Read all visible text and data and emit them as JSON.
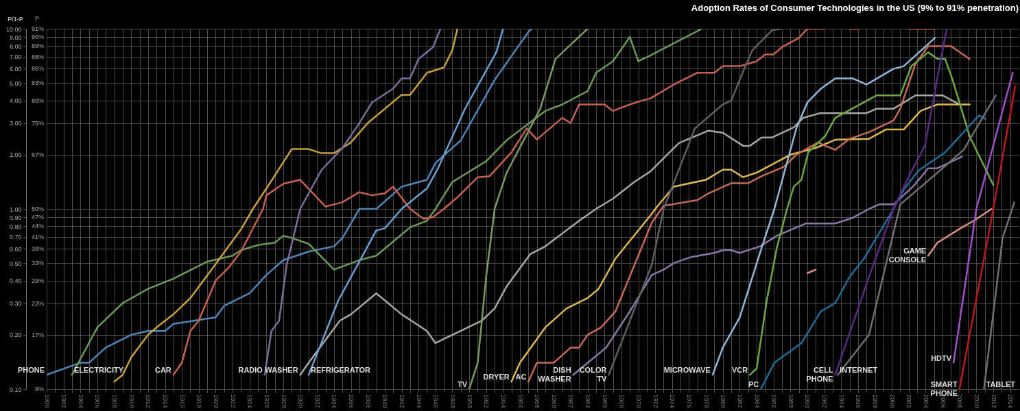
{
  "chart_data": {
    "type": "line",
    "title": "Adoption Rates of Consumer Technologies in the US (9% to 91% penetration)",
    "ylabel": "P/1-P",
    "annotations": [
      "P",
      "9%",
      "17%",
      "23%",
      "29%",
      "33%",
      "38%",
      "41%",
      "44%",
      "47%",
      "50%",
      "67%",
      "75%",
      "80%",
      "83%",
      "86%",
      "88%",
      "89%",
      "90%",
      "91%"
    ],
    "log": "y",
    "grid": true,
    "legend": false,
    "xlim": [
      1900,
      2015
    ],
    "ylim": [
      0.1,
      10
    ],
    "yticks": [
      {
        "value": 0.1,
        "label": "0.10"
      },
      {
        "value": 0.2,
        "label": "0.20"
      },
      {
        "value": 0.3,
        "label": "0.30"
      },
      {
        "value": 0.4,
        "label": "0.40"
      },
      {
        "value": 0.5,
        "label": "0.50"
      },
      {
        "value": 0.6,
        "label": "0.60"
      },
      {
        "value": 0.7,
        "label": "0.70"
      },
      {
        "value": 0.8,
        "label": "0.80"
      },
      {
        "value": 0.9,
        "label": "0.90"
      },
      {
        "value": 1,
        "label": "1.00"
      },
      {
        "value": 2,
        "label": "2.00"
      },
      {
        "value": 3,
        "label": "3.00"
      },
      {
        "value": 4,
        "label": "4.00"
      },
      {
        "value": 5,
        "label": "5.00"
      },
      {
        "value": 6,
        "label": "6.00"
      },
      {
        "value": 7,
        "label": "7.00"
      },
      {
        "value": 8,
        "label": "8.00"
      },
      {
        "value": 9,
        "label": "9.00"
      },
      {
        "value": 10,
        "label": "10.00"
      }
    ],
    "xticks": [
      1900,
      {
        "value": 1901,
        "label": null
      },
      1902,
      {
        "value": 1903,
        "label": null
      },
      1904,
      {
        "value": 1905,
        "label": null
      },
      1906,
      {
        "value": 1907,
        "label": null
      },
      1908,
      {
        "value": 1909,
        "label": null
      },
      1910,
      {
        "value": 1911,
        "label": null
      },
      1912,
      {
        "value": 1913,
        "label": null
      },
      1914,
      {
        "value": 1915,
        "label": null
      },
      1916,
      {
        "value": 1917,
        "label": null
      },
      1918,
      {
        "value": 1919,
        "label": null
      },
      1920,
      {
        "value": 1921,
        "label": null
      },
      1922,
      {
        "value": 1923,
        "label": null
      },
      1924,
      {
        "value": 1925,
        "label": null
      },
      1926,
      {
        "value": 1927,
        "label": null
      },
      1928,
      {
        "value": 1929,
        "label": null
      },
      1930,
      {
        "value": 1931,
        "label": null
      },
      1932,
      {
        "value": 1933,
        "label": null
      },
      1934,
      {
        "value": 1935,
        "label": null
      },
      1936,
      {
        "value": 1937,
        "label": null
      },
      1938,
      {
        "value": 1939,
        "label": null
      },
      1940,
      {
        "value": 1941,
        "label": null
      },
      1942,
      {
        "value": 1943,
        "label": null
      },
      1944,
      {
        "value": 1945,
        "label": null
      },
      1946,
      {
        "value": 1947,
        "label": null
      },
      1948,
      {
        "value": 1949,
        "label": null
      },
      1950,
      {
        "value": 1951,
        "label": null
      },
      1952,
      {
        "value": 1953,
        "label": null
      },
      1954,
      {
        "value": 1955,
        "label": null
      },
      1956,
      {
        "value": 1957,
        "label": null
      },
      1958,
      {
        "value": 1959,
        "label": null
      },
      1960,
      {
        "value": 1961,
        "label": null
      },
      1962,
      {
        "value": 1963,
        "label": null
      },
      1964,
      {
        "value": 1965,
        "label": null
      },
      1966,
      {
        "value": 1967,
        "label": null
      },
      1968,
      {
        "value": 1969,
        "label": null
      },
      1970,
      {
        "value": 1971,
        "label": null
      },
      1972,
      {
        "value": 1973,
        "label": null
      },
      1974,
      {
        "value": 1975,
        "label": null
      },
      1976,
      {
        "value": 1977,
        "label": null
      },
      1978,
      {
        "value": 1979,
        "label": null
      },
      1980,
      {
        "value": 1981,
        "label": null
      },
      1982,
      {
        "value": 1983,
        "label": null
      },
      1984,
      {
        "value": 1985,
        "label": null
      },
      1986,
      {
        "value": 1987,
        "label": null
      },
      1988,
      {
        "value": 1989,
        "label": null
      },
      1990,
      {
        "value": 1991,
        "label": null
      },
      1992,
      {
        "value": 1993,
        "label": null
      },
      1994,
      {
        "value": 1995,
        "label": null
      },
      1996,
      {
        "value": 1997,
        "label": null
      },
      1998,
      {
        "value": 1999,
        "label": null
      },
      2000,
      {
        "value": 2001,
        "label": null
      },
      2002,
      {
        "value": 2003,
        "label": null
      },
      2004,
      {
        "value": 2005,
        "label": null
      },
      2006,
      {
        "value": 2007,
        "label": null
      },
      2008,
      {
        "value": 2009,
        "label": null
      },
      2010,
      {
        "value": 2011,
        "label": null
      },
      2012,
      {
        "value": 2013,
        "label": null
      },
      2014
    ],
    "series": [
      {
        "name": "PHONE",
        "color": "#4f86b8",
        "x": [
          1900,
          1904,
          1905,
          1907,
          1910,
          1912,
          1914,
          1915,
          1920,
          1921,
          1924,
          1926,
          1928,
          1931,
          1934,
          1935,
          1937,
          1939,
          1942,
          1945,
          1946,
          1949,
          1953,
          1957,
          1957.4
        ],
        "values": [
          0.12,
          0.14,
          0.14,
          0.17,
          0.2,
          0.21,
          0.21,
          0.23,
          0.25,
          0.29,
          0.34,
          0.43,
          0.52,
          0.58,
          0.62,
          0.69,
          1.0,
          1.0,
          1.33,
          1.45,
          1.8,
          2.4,
          5.2,
          9.6,
          10
        ]
      },
      {
        "name": "ELECTRICITY",
        "color": "#6a9a58",
        "x": [
          1903,
          1906,
          1909,
          1912,
          1915,
          1919,
          1922,
          1923,
          1925,
          1927,
          1928,
          1929,
          1931,
          1934,
          1937,
          1939,
          1943,
          1945,
          1946,
          1948,
          1952,
          1954.4,
          1959,
          1961,
          1964,
          1965,
          1967,
          1969,
          1970,
          1971.4,
          1977.5
        ],
        "values": [
          0.12,
          0.22,
          0.3,
          0.36,
          0.41,
          0.51,
          0.55,
          0.59,
          0.63,
          0.65,
          0.71,
          0.69,
          0.64,
          0.46,
          0.52,
          0.55,
          0.79,
          0.86,
          1.0,
          1.41,
          1.84,
          2.4,
          3.5,
          3.8,
          4.5,
          5.7,
          6.6,
          9.0,
          6.6,
          7.1,
          10
        ]
      },
      {
        "color": "#c9a13b",
        "x": [
          1908,
          1909,
          1910,
          1912,
          1913,
          1915,
          1917,
          1919.5,
          1923,
          1924.4,
          1926.5,
          1929,
          1931,
          1932.5,
          1934,
          1936,
          1938,
          1942,
          1943,
          1945,
          1947,
          1948,
          1948.6
        ],
        "values": [
          0.11,
          0.12,
          0.15,
          0.2,
          0.22,
          0.26,
          0.32,
          0.46,
          0.77,
          1.0,
          1.41,
          2.15,
          2.15,
          2.04,
          2.04,
          2.34,
          3.0,
          4.3,
          4.3,
          5.7,
          6.1,
          7.6,
          10
        ]
      },
      {
        "name": "CAR",
        "color": "#c8614f",
        "x": [
          1915,
          1916,
          1917,
          1918,
          1920,
          1921.5,
          1923,
          1925.6,
          1926,
          1928,
          1930,
          1933,
          1935,
          1937,
          1938.5,
          1940,
          1941,
          1943,
          1944.6,
          1945.7,
          1947,
          1948.6,
          1951,
          1952.4,
          1955,
          1956.8,
          1958,
          1961,
          1962,
          1963,
          1966,
          1967,
          1969,
          1970.5,
          1971.4,
          1974.2,
          1977,
          1979,
          1980,
          1982,
          1984,
          1985,
          1986,
          1987,
          1989,
          1990,
          1991,
          1992,
          1993,
          1994,
          1995,
          1996,
          1997,
          2001,
          2002,
          2003,
          2004,
          2005
        ],
        "values": [
          0.12,
          0.14,
          0.21,
          0.24,
          0.4,
          0.47,
          0.58,
          1.0,
          1.19,
          1.38,
          1.45,
          1.03,
          1.09,
          1.24,
          1.19,
          1.22,
          1.33,
          1.0,
          0.88,
          0.9,
          1.0,
          1.16,
          1.5,
          1.52,
          2.06,
          2.8,
          2.43,
          3.2,
          3.0,
          3.8,
          3.8,
          3.5,
          3.8,
          4.0,
          4.1,
          4.9,
          5.7,
          5.7,
          6.2,
          6.2,
          6.6,
          7.2,
          7.2,
          7.9,
          8.9,
          10,
          10,
          10,
          null,
          null,
          10,
          10,
          null,
          null,
          10,
          10,
          10,
          10
        ]
      },
      {
        "name": "RADIO",
        "color": "#7d6e9c",
        "x": [
          1925.8,
          1926.6,
          1927.5,
          1928.4,
          1930,
          1932.5,
          1935,
          1936.8,
          1938.5,
          1941,
          1942,
          1943,
          1944,
          1945.7,
          1946.6
        ],
        "values": [
          0.12,
          0.21,
          0.24,
          0.49,
          1.0,
          1.64,
          2.18,
          2.9,
          3.9,
          4.65,
          5.3,
          5.3,
          6.8,
          7.9,
          10
        ]
      },
      {
        "name": "WASHER",
        "color": "#a8a8a0",
        "x": [
          1930,
          1931,
          1934.7,
          1936,
          1939,
          1942,
          1945,
          1946,
          1947,
          1948,
          1951.5,
          1953,
          1954.4,
          1957.2,
          1959,
          1963,
          1965,
          1967,
          1969.6,
          1971.4,
          1974.8,
          1978.3,
          1980,
          1982.4,
          1983.2,
          1984.6,
          1985.8,
          1988.4,
          1989.5,
          1991.5,
          1997,
          1998.2,
          2000.2,
          2002.8,
          2006,
          2008
        ],
        "values": [
          0.12,
          0.14,
          0.24,
          0.26,
          0.34,
          0.26,
          0.21,
          0.18,
          0.19,
          0.2,
          0.24,
          0.28,
          0.37,
          0.56,
          0.62,
          0.86,
          1.0,
          1.14,
          1.42,
          1.61,
          2.32,
          2.72,
          2.65,
          2.24,
          2.24,
          2.49,
          2.49,
          2.84,
          3.2,
          3.4,
          3.4,
          3.6,
          3.6,
          4.27,
          4.27,
          3.8
        ]
      },
      {
        "name": "REFRIGERATOR",
        "color": "#6aa0d0",
        "x": [
          1931,
          1934.5,
          1939,
          1940,
          1942,
          1945,
          1946.3,
          1949.5,
          1953.2,
          1954
        ],
        "values": [
          0.12,
          0.31,
          0.76,
          0.78,
          1.0,
          1.3,
          1.68,
          3.6,
          7.4,
          10
        ]
      },
      {
        "name": "TV",
        "color": "#7a9a60",
        "x": [
          1950,
          1951,
          1952,
          1953,
          1954.4,
          1958.4,
          1960.2,
          1964
        ],
        "values": [
          0.1,
          0.14,
          0.42,
          1.0,
          1.58,
          3.6,
          6.8,
          10
        ]
      },
      {
        "name": "DRYER",
        "color": "#e0b850",
        "x": [
          1955,
          1956,
          1959,
          1961.5,
          1964,
          1965.3,
          1967.3,
          1971.6,
          1972.3,
          1974.2,
          1978,
          1980,
          1981,
          1982.4,
          1984,
          1988,
          1991,
          1993.3,
          1997.3,
          1999.3,
          2001.4,
          2003.4,
          2005.4,
          2009.2
        ],
        "values": [
          0.11,
          0.14,
          0.22,
          0.28,
          0.32,
          0.36,
          0.53,
          0.94,
          1.04,
          1.33,
          1.45,
          1.65,
          1.65,
          1.5,
          1.59,
          2.0,
          2.18,
          2.42,
          2.45,
          2.76,
          2.76,
          3.5,
          3.8,
          3.8
        ]
      },
      {
        "name": "AC",
        "color": "#c86a58",
        "x": [
          1957,
          1958,
          1960,
          1962,
          1963,
          1964,
          1965.6,
          1967.3,
          1971.6,
          1973,
          1977,
          1978.3,
          1981,
          1983,
          1984.6,
          1987.2,
          1988.7,
          1991.3,
          1992.1,
          1993.3,
          1995,
          1997.3,
          2000.2,
          2001,
          2002.8,
          2004.3,
          2007,
          2009.2
        ],
        "values": [
          0.11,
          0.14,
          0.14,
          0.17,
          0.17,
          0.2,
          0.22,
          0.27,
          0.84,
          1.04,
          1.12,
          1.22,
          1.39,
          1.39,
          1.52,
          1.71,
          2.0,
          2.34,
          2.24,
          2.13,
          2.45,
          2.67,
          3.1,
          3.6,
          6.4,
          8.0,
          8.0,
          6.8
        ]
      },
      {
        "name": "DISH WASHER",
        "color": "#8a78a8",
        "x": [
          1962.3,
          1966.2,
          1969,
          1971.6,
          1973,
          1974.2,
          1976.2,
          1979,
          1980,
          1981,
          1982,
          1984.4,
          1986.4,
          1989.8,
          1993.3,
          1995.3,
          1997.3,
          1998.5,
          2000.2,
          2002.5,
          2004.3,
          2005.4,
          2008.3
        ],
        "values": [
          0.12,
          0.17,
          0.27,
          0.43,
          0.46,
          0.5,
          0.54,
          0.57,
          0.59,
          0.59,
          0.57,
          0.62,
          0.71,
          0.83,
          0.83,
          0.89,
          1.0,
          1.06,
          1.06,
          1.33,
          1.68,
          1.68,
          1.95
        ]
      },
      {
        "name": "COLOR TV",
        "color": "#606060",
        "x": [
          1966.5,
          1971.6,
          1973,
          1976.7,
          1980,
          1981,
          1982.4,
          1983.5,
          1985.8,
          1987
        ],
        "values": [
          0.12,
          0.49,
          1.0,
          2.8,
          3.8,
          4.0,
          5.8,
          7.6,
          9.8,
          10
        ]
      },
      {
        "name": "MICROWAVE",
        "color": "#90b8d8",
        "x": [
          1978.8,
          1980,
          1982,
          1984.4,
          1986.1,
          1988.7,
          1990,
          1991.6,
          1993.3,
          1995.4,
          1997,
          2000.2,
          2001.4,
          2005.1
        ],
        "values": [
          0.12,
          0.17,
          0.25,
          0.57,
          1.0,
          2.8,
          3.9,
          4.65,
          5.3,
          5.3,
          4.9,
          6.0,
          6.2,
          8.9
        ]
      },
      {
        "name": "VCR",
        "color": "#6aaa40",
        "x": [
          1983.2,
          1984,
          1985.2,
          1986.4,
          1987.6,
          1988.4,
          1989.3,
          1990.1,
          1992.1,
          1993.3,
          1998.2,
          2001,
          2002.3,
          2004.3,
          2005.4,
          2006.3,
          2007.1,
          2008,
          2009.2,
          2012
        ],
        "values": [
          0.12,
          0.13,
          0.31,
          0.61,
          1.0,
          1.33,
          1.45,
          2.06,
          2.53,
          3.2,
          4.27,
          4.27,
          6.2,
          7.4,
          6.8,
          6.8,
          5.35,
          3.9,
          2.53,
          1.36
        ]
      },
      {
        "name": "PC",
        "color": "#1f6e9a",
        "x": [
          1984.5,
          1986.1,
          1989.3,
          1991.6,
          1993.3,
          1995,
          1996.7,
          2000.2,
          2001.5,
          2003.2,
          2006.3,
          2010.3,
          2011.1
        ],
        "values": [
          0.1,
          0.14,
          0.18,
          0.27,
          0.3,
          0.42,
          0.53,
          1.0,
          1.3,
          1.64,
          2.06,
          3.3,
          3.15
        ]
      },
      {
        "color": "#e09080",
        "x": [
          1990,
          1991
        ],
        "values": [
          0.44,
          0.46
        ]
      },
      {
        "name": "CELL PHONE",
        "color": "#5a2a85",
        "x": [
          1993.3,
          1997.3,
          2000.2,
          2001.9,
          2003.9,
          2006,
          2006.5
        ],
        "values": [
          0.12,
          0.42,
          1.0,
          1.48,
          2.24,
          7.6,
          10
        ]
      },
      {
        "name": "INTERNET",
        "color": "#707070",
        "x": [
          1993.6,
          1997.3,
          2001,
          2005.4,
          2008.5,
          2012.3
        ],
        "values": [
          0.12,
          0.2,
          1.06,
          1.59,
          2.13,
          4.27
        ]
      },
      {
        "name": "GAME CONSOLE",
        "color": "#e09080",
        "x": [
          2004.3,
          2005.4,
          2008.3,
          2009.7,
          2011.8
        ],
        "values": [
          0.55,
          0.65,
          0.79,
          0.86,
          1.0
        ]
      },
      {
        "name": "HDTV",
        "color": "#a050c8",
        "x": [
          2007.3,
          2010,
          2014.3
        ],
        "values": [
          0.14,
          1.0,
          5.7
        ]
      },
      {
        "name": "SMART PHONE",
        "color": "#c01818",
        "x": [
          2008,
          2012,
          2014.6
        ],
        "values": [
          0.1,
          1.0,
          4.8
        ]
      },
      {
        "name": "TABLET",
        "color": "#707070",
        "x": [
          2010.9,
          2013.1,
          2014.5
        ],
        "values": [
          0.1,
          0.69,
          1.09
        ]
      }
    ]
  }
}
